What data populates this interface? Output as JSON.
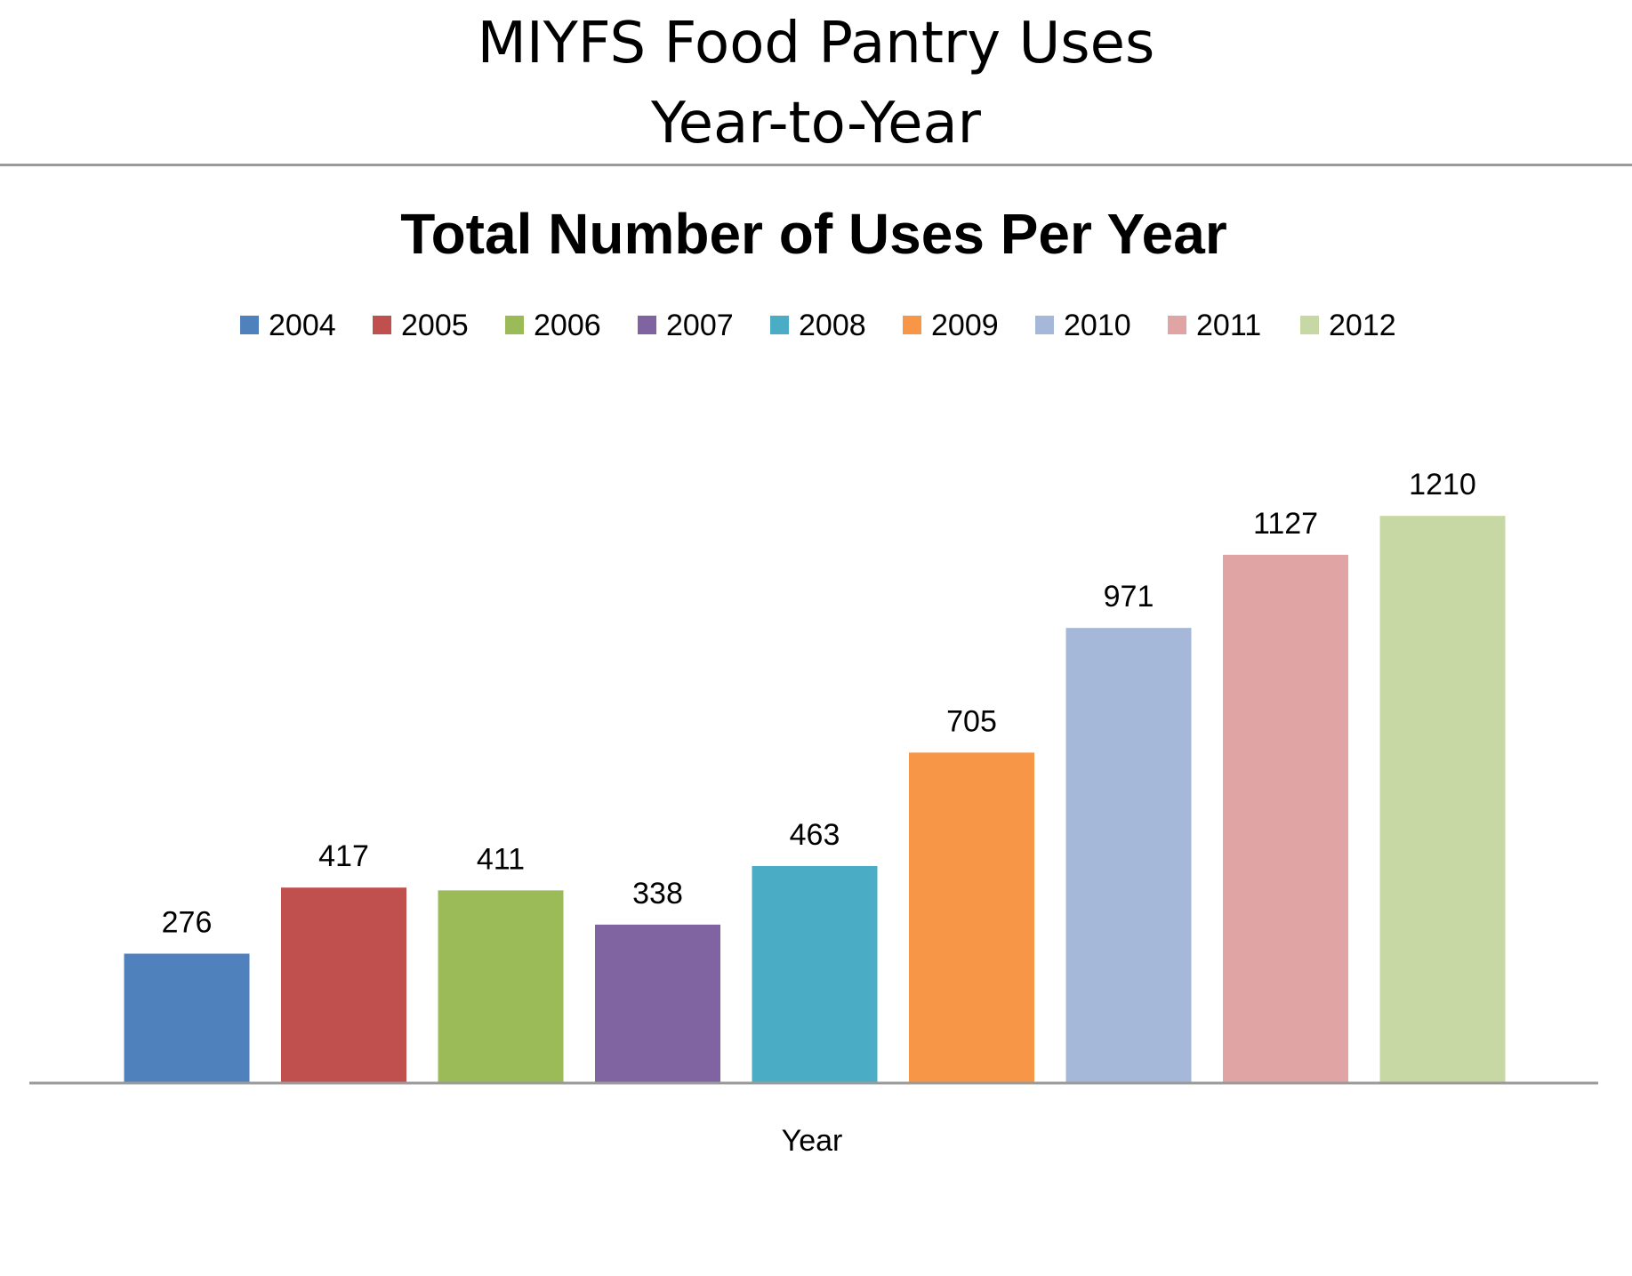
{
  "slide": {
    "title_line1": "MIYFS Food Pantry Uses",
    "title_line2": "Year-to-Year"
  },
  "chart_data": {
    "type": "bar",
    "title": "Total Number of Uses Per Year",
    "xlabel": "Year",
    "ylabel": "",
    "ylim": [
      0,
      1400
    ],
    "grid": false,
    "legend_position": "top",
    "categories": [
      "2004",
      "2005",
      "2006",
      "2007",
      "2008",
      "2009",
      "2010",
      "2011",
      "2012"
    ],
    "values": [
      276,
      417,
      411,
      338,
      463,
      705,
      971,
      1127,
      1210
    ],
    "data_labels": [
      "276",
      "417",
      "411",
      "338",
      "463",
      "705",
      "971",
      "1127",
      "1210"
    ],
    "colors": [
      "#4f81bd",
      "#c0504d",
      "#9bbb59",
      "#8064a2",
      "#4bacc6",
      "#f79646",
      "#a5b8d9",
      "#e0a4a4",
      "#c8d8a4"
    ]
  }
}
